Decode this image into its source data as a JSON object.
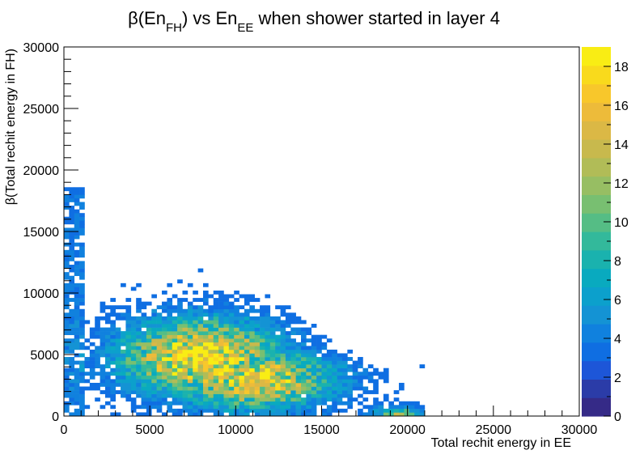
{
  "chart_data": {
    "type": "heatmap",
    "title": {
      "prefix": "β(En",
      "sub1": "FH",
      "mid": ") vs En",
      "sub2": "EE",
      "suffix": " when  shower started in layer 4"
    },
    "xlabel": "Total rechit energy in EE",
    "ylabel": "β(Total rechit energy in FH)",
    "xlim": [
      0,
      30000
    ],
    "ylim": [
      0,
      30000
    ],
    "zlim": [
      0,
      19
    ],
    "x_ticks": [
      0,
      5000,
      10000,
      15000,
      20000,
      25000,
      30000
    ],
    "y_ticks": [
      0,
      5000,
      10000,
      15000,
      20000,
      25000,
      30000
    ],
    "z_ticks": [
      0,
      2,
      4,
      6,
      8,
      10,
      12,
      14,
      16,
      18
    ],
    "bin_width": [
      300,
      300
    ],
    "palette": [
      "#352a87",
      "#2b3ca8",
      "#1d56d8",
      "#0f6ee2",
      "#1081de",
      "#1493d4",
      "#0ca0cc",
      "#09aabf",
      "#1ab2ae",
      "#33b99b",
      "#55bd85",
      "#78bf71",
      "#97be63",
      "#b1bc57",
      "#c8b94d",
      "#dbb845",
      "#edbb3a",
      "#f8c72b",
      "#f9da1c",
      "#f9ed14"
    ],
    "grid": false,
    "legend": "color-bar-right"
  }
}
